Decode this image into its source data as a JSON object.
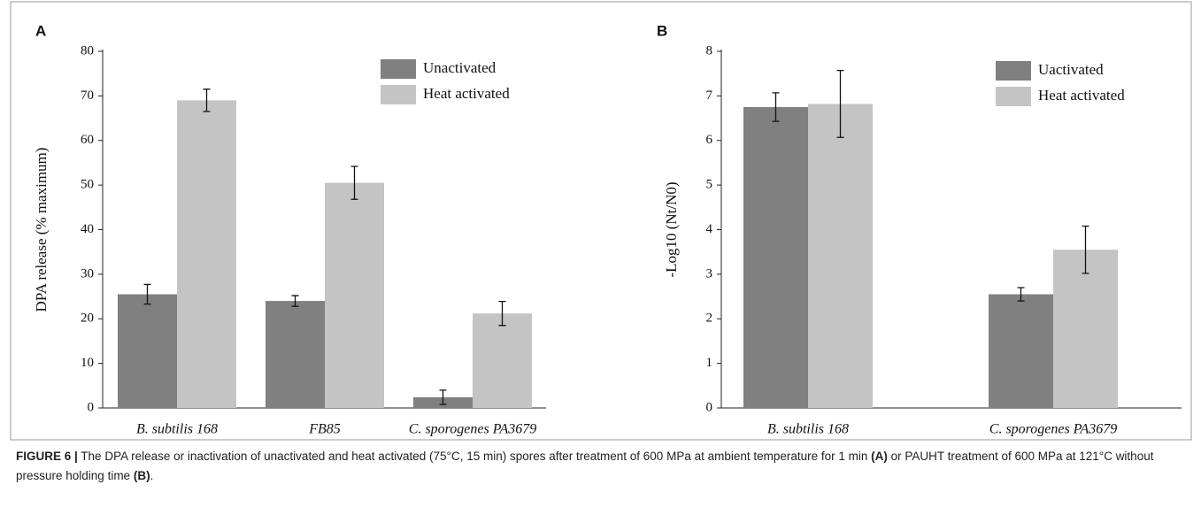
{
  "chart_data": [
    {
      "type": "bar",
      "panel": "A",
      "ylabel": "DPA release (% maximum)",
      "categories": [
        "B. subtilis 168",
        "FB85",
        "C. sporogenes PA3679"
      ],
      "series": [
        {
          "name": "Unactivated",
          "color": "#808080",
          "values": [
            25.5,
            24,
            2.4
          ],
          "errors": [
            2.2,
            1.2,
            1.6
          ]
        },
        {
          "name": "Heat activated",
          "color": "#c4c4c4",
          "values": [
            69,
            50.5,
            21.2
          ],
          "errors": [
            2.5,
            3.7,
            2.7
          ]
        }
      ],
      "ylim": [
        0,
        80
      ],
      "yticks": [
        0,
        10,
        20,
        30,
        40,
        50,
        60,
        70,
        80
      ]
    },
    {
      "type": "bar",
      "panel": "B",
      "ylabel": "-Log10 (Nt/N0)",
      "categories": [
        "B. subtilis 168",
        "C. sporogenes PA3679"
      ],
      "series": [
        {
          "name": "Uactivated",
          "color": "#808080",
          "values": [
            6.75,
            2.55
          ],
          "errors": [
            0.32,
            0.15
          ]
        },
        {
          "name": "Heat activated",
          "color": "#c4c4c4",
          "values": [
            6.82,
            3.55
          ],
          "errors": [
            0.75,
            0.53
          ]
        }
      ],
      "ylim": [
        0,
        8
      ],
      "yticks": [
        0,
        1,
        2,
        3,
        4,
        5,
        6,
        7,
        8
      ]
    }
  ],
  "caption": [
    "FIGURE 6 |",
    " The DPA release or inactivation of unactivated and heat activated (75°C, 15 min) spores after treatment of 600 MPa at ambient temperature for 1 min ",
    "(A)",
    " or PAUHT treatment of 600 MPa at 121°C without pressure holding time ",
    "(B)",
    "."
  ]
}
